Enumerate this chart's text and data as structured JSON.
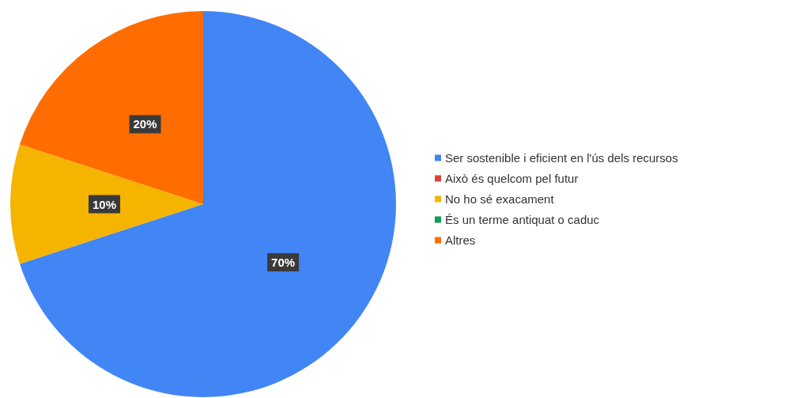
{
  "chart_data": {
    "type": "pie",
    "categories": [
      "Ser sostenible i eficient en l'ús dels recursos",
      "Això és quelcom pel futur",
      "No ho sé exacament",
      "És un terme antiquat o caduc",
      "Altres"
    ],
    "values": [
      70,
      0,
      10,
      0,
      20
    ],
    "colors": [
      "#4285f4",
      "#db4437",
      "#f4b400",
      "#0f9d58",
      "#ff6d00"
    ],
    "value_labels": [
      "70%",
      null,
      "10%",
      null,
      "20%"
    ],
    "legend": "right"
  }
}
